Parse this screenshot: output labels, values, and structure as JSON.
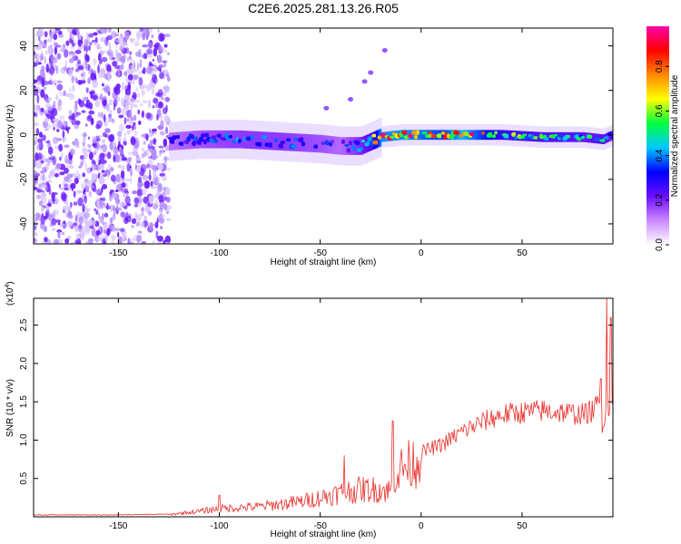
{
  "title": "C2E6.2025.281.13.26.R05",
  "chart_data": [
    {
      "type": "heatmap",
      "title": "C2E6.2025.281.13.26.R05",
      "xlabel": "Height of straight line (km)",
      "ylabel": "Frequency (Hz)",
      "xlim": [
        -192,
        95
      ],
      "ylim": [
        -49,
        48
      ],
      "xticks": [
        -150,
        -100,
        -50,
        0,
        50
      ],
      "xtick_labels": [
        "-150",
        "-100",
        "-50",
        "0",
        "50"
      ],
      "yticks": [
        -40,
        -20,
        0,
        20,
        40
      ],
      "ytick_labels": [
        "-40",
        "-20",
        "0",
        "20",
        "40"
      ],
      "noise_region_km": [
        -192,
        -125
      ],
      "ridge": {
        "x": [
          -125,
          -110,
          -90,
          -70,
          -50,
          -40,
          -30,
          -25,
          -20,
          -10,
          0,
          10,
          20,
          40,
          60,
          80,
          90,
          95
        ],
        "freq_hz": [
          -3,
          -2,
          -2,
          -3,
          -4,
          -5,
          -5,
          -3,
          -1,
          0,
          0,
          0,
          0,
          0,
          -1,
          -1,
          -2,
          0
        ],
        "amplitude": [
          0.3,
          0.35,
          0.4,
          0.4,
          0.35,
          0.3,
          0.45,
          0.55,
          0.9,
          0.9,
          0.85,
          0.8,
          0.95,
          0.6,
          0.55,
          0.5,
          0.55,
          0.4
        ]
      },
      "harmonic_points": [
        {
          "x": -47,
          "freq_hz": 12
        },
        {
          "x": -35,
          "freq_hz": 16
        },
        {
          "x": -28,
          "freq_hz": 24
        },
        {
          "x": -25,
          "freq_hz": 28
        },
        {
          "x": -18,
          "freq_hz": 38
        }
      ],
      "colorbar": {
        "label": "Normalized spectral amplitude",
        "range": [
          0.0,
          0.98
        ],
        "ticks": [
          0.0,
          0.2,
          0.4,
          0.6,
          0.8
        ],
        "tick_labels": [
          "0.0",
          "0.2",
          "0.4",
          "0.6",
          "0.8"
        ],
        "colors": [
          "#ffffff",
          "#cc88ff",
          "#6a0dff",
          "#0000ff",
          "#00c8ff",
          "#00ff40",
          "#ffff00",
          "#ff8800",
          "#ff0000",
          "#ff00aa"
        ]
      }
    },
    {
      "type": "line",
      "title": "",
      "xlabel": "Height of straight line (km)",
      "ylabel": "SNR (10 * v/v)",
      "multiplier": "(x10",
      "multiplier_exp": "4",
      "multiplier_close": ")",
      "xlim": [
        -192,
        95
      ],
      "ylim": [
        0,
        2.85
      ],
      "xticks": [
        -150,
        -100,
        -50,
        0,
        50
      ],
      "xtick_labels": [
        "-150",
        "-100",
        "-50",
        "0",
        "50"
      ],
      "yticks": [
        0.5,
        1.0,
        1.5,
        2.0,
        2.5
      ],
      "ytick_labels": [
        "0.5",
        "1.0",
        "1.5",
        "2.0",
        "2.5"
      ],
      "color": "#e8302a",
      "envelope": {
        "x": [
          -192,
          -150,
          -125,
          -120,
          -110,
          -100,
          -80,
          -60,
          -50,
          -40,
          -30,
          -20,
          -15,
          -14,
          -10,
          -5,
          0,
          10,
          20,
          30,
          40,
          50,
          60,
          70,
          80,
          85,
          88,
          90,
          92,
          94,
          95
        ],
        "y": [
          0.02,
          0.02,
          0.03,
          0.05,
          0.08,
          0.12,
          0.15,
          0.22,
          0.28,
          0.35,
          0.4,
          0.4,
          0.38,
          0.6,
          0.7,
          0.78,
          0.85,
          0.95,
          1.12,
          1.25,
          1.35,
          1.38,
          1.4,
          1.38,
          1.35,
          1.4,
          1.5,
          1.2,
          1.55,
          1.3,
          1.5
        ]
      },
      "spikes": [
        {
          "x": -100,
          "y": 0.28
        },
        {
          "x": -38,
          "y": 0.8
        },
        {
          "x": -14,
          "y": 1.25
        },
        {
          "x": 89,
          "y": 1.8
        },
        {
          "x": 92,
          "y": 2.85
        },
        {
          "x": 94,
          "y": 2.6
        }
      ]
    }
  ]
}
